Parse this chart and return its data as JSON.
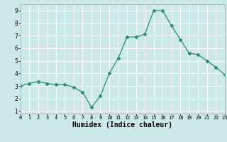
{
  "x": [
    0,
    1,
    2,
    3,
    4,
    5,
    6,
    7,
    8,
    9,
    10,
    11,
    12,
    13,
    14,
    15,
    16,
    17,
    18,
    19,
    20,
    21,
    22,
    23
  ],
  "y": [
    3.0,
    3.2,
    3.35,
    3.2,
    3.1,
    3.1,
    2.9,
    2.5,
    1.3,
    2.2,
    4.0,
    5.2,
    6.9,
    6.9,
    7.1,
    9.0,
    9.0,
    7.8,
    6.7,
    5.6,
    5.5,
    5.0,
    4.5,
    3.9
  ],
  "xlabel": "Humidex (Indice chaleur)",
  "xlim": [
    0,
    23
  ],
  "ylim": [
    0.8,
    9.5
  ],
  "yticks": [
    1,
    2,
    3,
    4,
    5,
    6,
    7,
    8,
    9
  ],
  "xticks": [
    0,
    1,
    2,
    3,
    4,
    5,
    6,
    7,
    8,
    9,
    10,
    11,
    12,
    13,
    14,
    15,
    16,
    17,
    18,
    19,
    20,
    21,
    22,
    23
  ],
  "line_color": "#2e8b76",
  "marker": "D",
  "marker_size": 2.5,
  "bg_color": "#cce8e8",
  "grid_color": "#ffffff"
}
